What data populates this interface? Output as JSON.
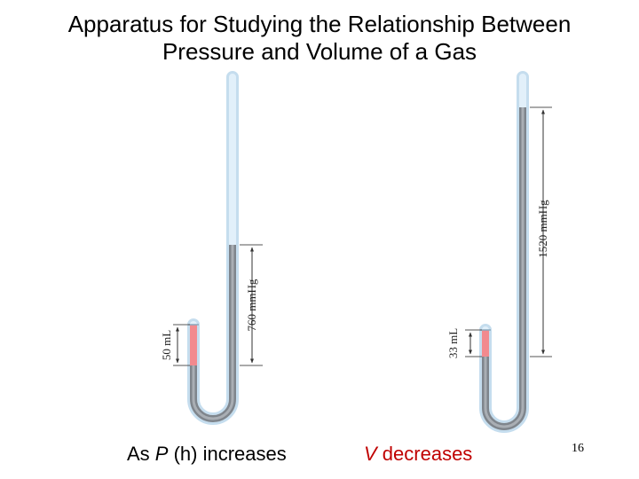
{
  "title": {
    "line1": "Apparatus for Studying the Relationship Between",
    "line2": "Pressure and Volume of a Gas"
  },
  "left_apparatus": {
    "gas_volume_label": "50 mL",
    "pressure_label": "760 mmHg"
  },
  "right_apparatus": {
    "gas_volume_label": "33 mL",
    "pressure_label": "1520 mmHg"
  },
  "captions": {
    "left_prefix": "As ",
    "left_var": "P",
    "left_suffix": " (h) increases",
    "right_var": "V",
    "right_suffix": " decreases"
  },
  "page_number": "16",
  "colors": {
    "tube_glass": "#d4e9f7",
    "mercury": "#8a8f96",
    "gas": "#f28a8e",
    "caption_right": "#c00000"
  }
}
